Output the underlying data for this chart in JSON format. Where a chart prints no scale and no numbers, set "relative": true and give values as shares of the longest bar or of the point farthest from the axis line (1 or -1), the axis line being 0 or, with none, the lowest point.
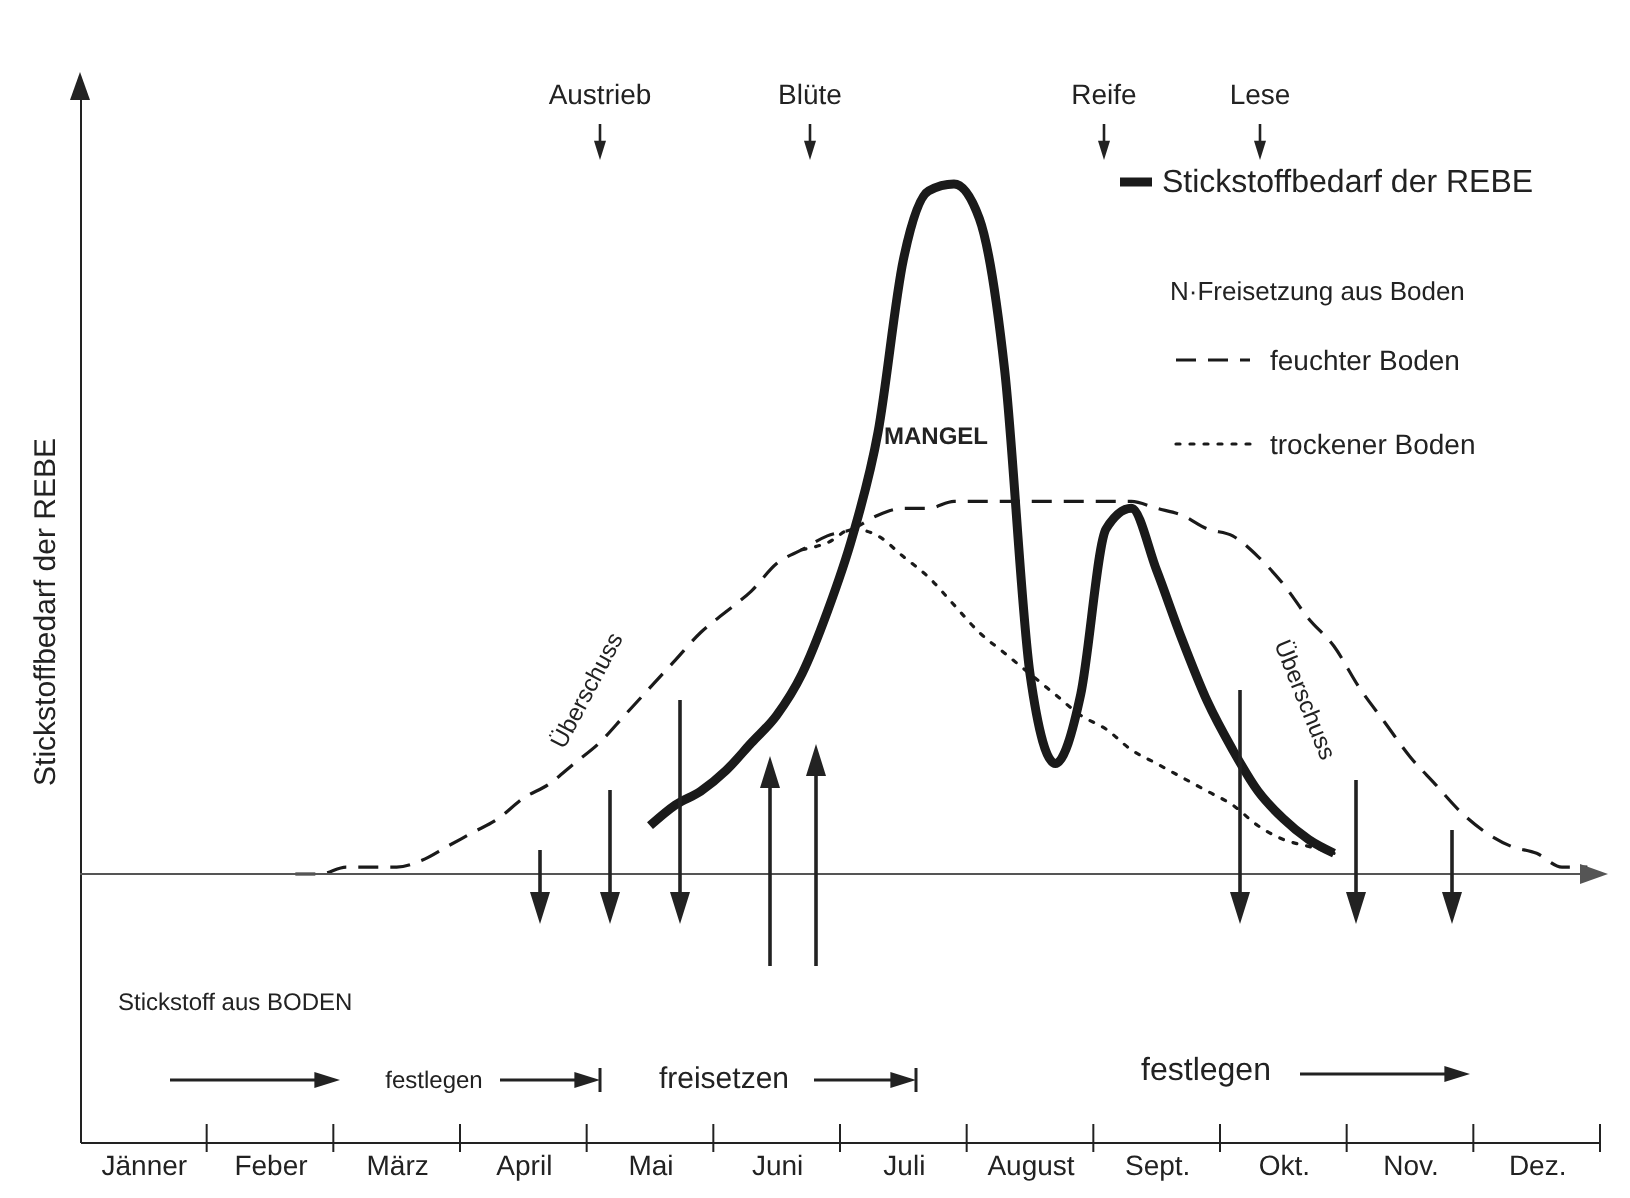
{
  "chart_data": {
    "type": "line",
    "relative": true,
    "ylabel": "Stickstoffbedarf der REBE",
    "tick_labels": "x",
    "legend": "top right",
    "legend_title": "N·Freisetzung aus Boden",
    "categories": [
      null,
      null,
      "Jänner",
      null,
      null,
      null,
      null,
      "Feber",
      null,
      null,
      null,
      null,
      "März",
      null,
      null,
      null,
      null,
      "April",
      null,
      null,
      null,
      null,
      "Mai",
      null,
      null,
      null,
      null,
      "Juni",
      null,
      null,
      null,
      null,
      "Juli",
      null,
      null,
      null,
      null,
      "August",
      null,
      null,
      null,
      null,
      "Sept.",
      null,
      null,
      null,
      null,
      "Okt.",
      null,
      null,
      null,
      null,
      "Nov.",
      null,
      null,
      null,
      null,
      "Dez.",
      null,
      null
    ],
    "annotations": [
      "Austrieb",
      "Blüte",
      "Reife",
      "Lese",
      "MANGEL",
      "Überschuss",
      "Überschuss",
      "Stickstoff aus BODEN",
      "festlegen",
      "freisetzen",
      "festlegen"
    ],
    "series": [
      {
        "name": "Stickstoffbedarf der REBE",
        "color": "#1a1a1a",
        "line_style": "solid",
        "values": [
          null,
          null,
          null,
          null,
          null,
          null,
          null,
          null,
          null,
          null,
          null,
          null,
          null,
          null,
          null,
          null,
          null,
          null,
          null,
          null,
          null,
          null,
          0.07,
          0.1,
          0.12,
          0.15,
          0.19,
          0.23,
          0.29,
          0.38,
          0.49,
          0.64,
          0.89,
          0.99,
          1.0,
          0.95,
          0.73,
          0.29,
          0.16,
          0.26,
          0.5,
          0.53,
          0.44,
          0.34,
          0.25,
          0.18,
          0.12,
          0.08,
          0.05,
          0.03,
          null,
          null,
          null,
          null,
          null,
          null,
          null,
          null,
          null,
          null
        ]
      },
      {
        "name": "feuchter Boden",
        "color": "#1a1a1a",
        "line_style": "dashed",
        "values": [
          null,
          null,
          null,
          null,
          null,
          null,
          null,
          null,
          0,
          0,
          0.01,
          0.01,
          0.01,
          0.02,
          0.04,
          0.06,
          0.08,
          0.11,
          0.13,
          0.16,
          0.19,
          0.23,
          0.27,
          0.31,
          0.35,
          0.38,
          0.41,
          0.45,
          0.47,
          0.49,
          0.5,
          0.52,
          0.53,
          0.53,
          0.54,
          0.54,
          0.54,
          0.54,
          0.54,
          0.54,
          0.54,
          0.54,
          0.53,
          0.52,
          0.5,
          0.49,
          0.46,
          0.42,
          0.37,
          0.33,
          0.27,
          0.22,
          0.17,
          0.13,
          0.09,
          0.06,
          0.04,
          0.03,
          0.01,
          0.01
        ]
      },
      {
        "name": "trockener Boden",
        "color": "#1a1a1a",
        "line_style": "dotted",
        "values": [
          null,
          null,
          null,
          null,
          null,
          null,
          null,
          null,
          null,
          null,
          null,
          null,
          null,
          null,
          null,
          null,
          null,
          null,
          null,
          null,
          null,
          null,
          null,
          null,
          null,
          null,
          null,
          null,
          0.47,
          0.48,
          0.5,
          0.49,
          0.46,
          0.43,
          0.39,
          0.35,
          0.32,
          0.29,
          0.26,
          0.23,
          0.21,
          0.18,
          0.16,
          0.14,
          0.12,
          0.1,
          0.07,
          0.05,
          0.04,
          0.03,
          null,
          null,
          null,
          null,
          null,
          null,
          null,
          null,
          null,
          null
        ]
      }
    ]
  }
}
